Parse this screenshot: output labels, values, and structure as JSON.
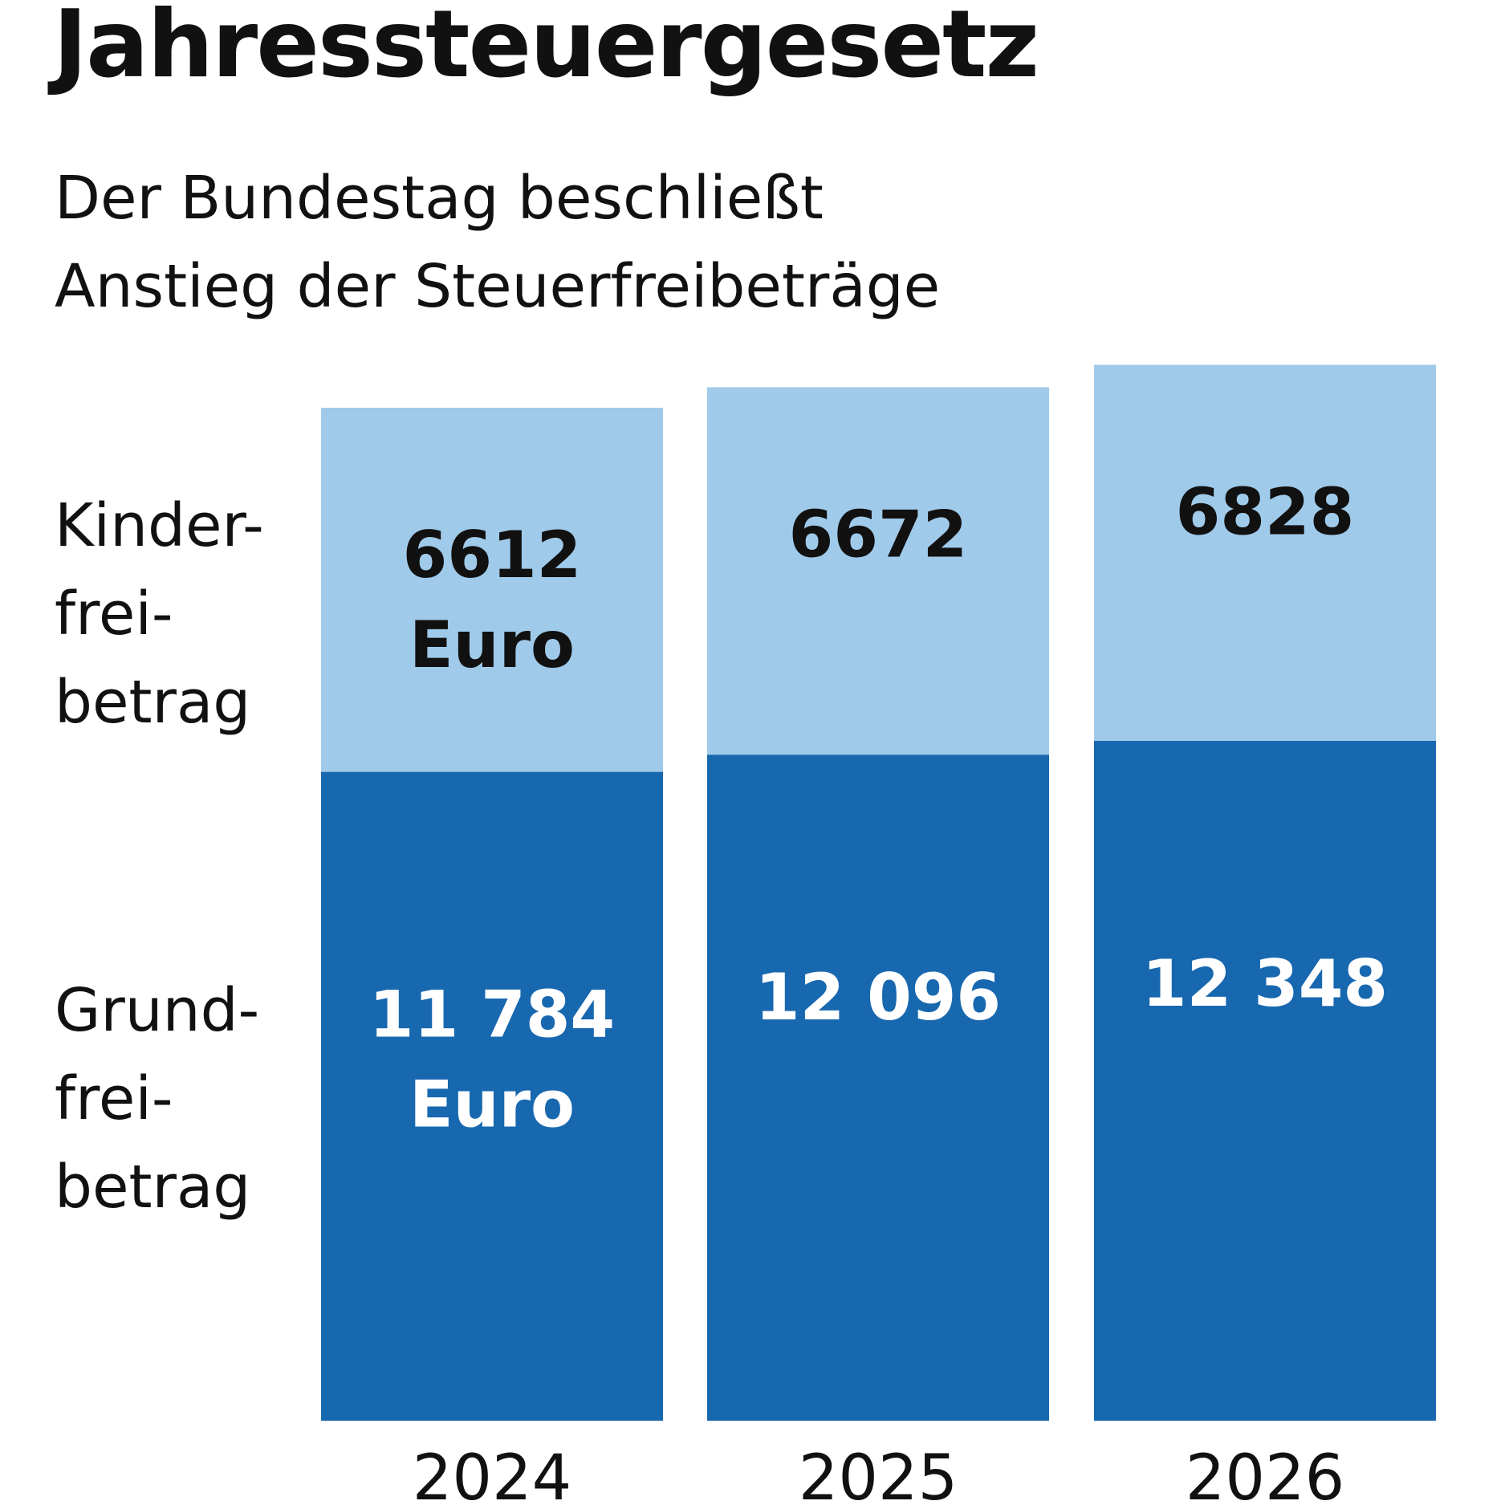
{
  "title": "Jahressteuergesetz",
  "subtitle": {
    "line1": "Der Bundestag beschließt",
    "line2": "Anstieg der Steuerfreibeträge"
  },
  "chart_data": {
    "type": "bar",
    "stacked": true,
    "title": "Jahressteuergesetz",
    "categories": [
      "2024",
      "2025",
      "2026"
    ],
    "unit": "Euro",
    "series": [
      {
        "name": "Grundfreibetrag",
        "label_lines": [
          "Grund-",
          "frei-",
          "betrag"
        ],
        "values": [
          11784,
          12096,
          12348
        ],
        "value_labels": [
          [
            "11 784",
            "Euro"
          ],
          [
            "12 096"
          ],
          [
            "12 348"
          ]
        ],
        "color": "#1868b0",
        "label_color": "#ffffff"
      },
      {
        "name": "Kinderfreibetrag",
        "label_lines": [
          "Kinder-",
          "frei-",
          "betrag"
        ],
        "values": [
          6612,
          6672,
          6828
        ],
        "value_labels": [
          [
            "6612",
            "Euro"
          ],
          [
            "6672"
          ],
          [
            "6828"
          ]
        ],
        "color": "#a0caea",
        "label_color": "#111111"
      }
    ],
    "grid": false,
    "legend": "left"
  }
}
